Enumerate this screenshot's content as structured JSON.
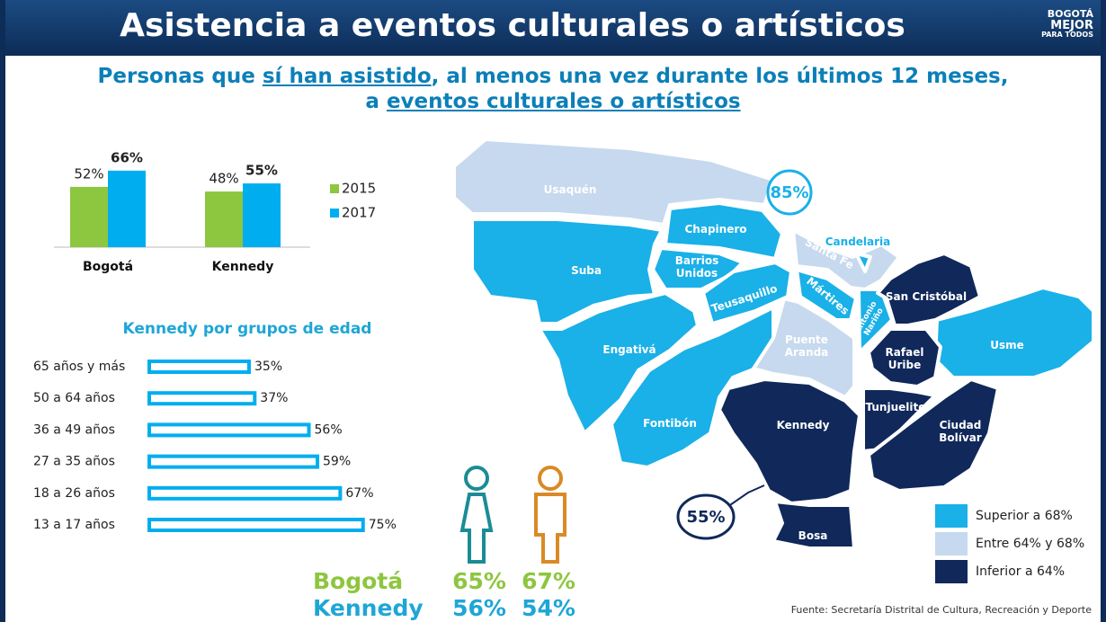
{
  "header": {
    "title": "Asistencia a eventos culturales o artísticos",
    "logo": [
      "BOGOTÁ",
      "MEJOR",
      "PARA TODOS"
    ]
  },
  "subtitle": {
    "line1": [
      {
        "text": "Personas que "
      },
      {
        "text": "sí han asistido",
        "underline": true
      },
      {
        "text": ", al menos una vez durante los últimos 12 meses,"
      }
    ],
    "line2": [
      {
        "text": "a "
      },
      {
        "text": "eventos culturales o artísticos",
        "underline": true
      }
    ]
  },
  "chart_data": [
    {
      "type": "bar",
      "categories": [
        "Bogotá",
        "Kennedy"
      ],
      "series": [
        {
          "name": "2015",
          "color": "#8dc63f",
          "values": [
            52,
            48
          ],
          "value_labels": [
            "52%",
            "48%"
          ]
        },
        {
          "name": "2017",
          "color": "#00aeef",
          "values": [
            66,
            55
          ],
          "value_labels": [
            "66%",
            "55%"
          ]
        }
      ]
    },
    {
      "type": "hbar",
      "title": "Kennedy por grupos de edad",
      "color": "#00aeef",
      "categories": [
        "65 años y más",
        "50 a 64 años",
        "36 a 49 años",
        "27 a 35 años",
        "18 a 26 años",
        "13 a 17 años"
      ],
      "values": [
        35,
        37,
        56,
        59,
        67,
        75
      ],
      "value_labels": [
        "35%",
        "37%",
        "56%",
        "59%",
        "67%",
        "75%"
      ]
    }
  ],
  "gender": {
    "rows": [
      {
        "name": "Bogotá",
        "color": "#8dc63f",
        "female": "65%",
        "male": "67%"
      },
      {
        "name": "Kennedy",
        "color": "#1ea6d6",
        "female": "56%",
        "male": "54%"
      }
    ]
  },
  "map": {
    "localities": [
      {
        "name": "Usaquén",
        "color": "#c6d9ee"
      },
      {
        "name": "Chapinero",
        "color": "#1ab0e8"
      },
      {
        "name": "Suba",
        "color": "#1ab0e8"
      },
      {
        "name": "Barrios\nUnidos",
        "color": "#1ab0e8"
      },
      {
        "name": "Teusaquillo",
        "color": "#1ab0e8"
      },
      {
        "name": "Engativá",
        "color": "#1ab0e8"
      },
      {
        "name": "Fontibón",
        "color": "#1ab0e8"
      },
      {
        "name": "Puente\nAranda",
        "color": "#c6d9ee"
      },
      {
        "name": "Mártires",
        "color": "#1ab0e8"
      },
      {
        "name": "Santa Fe",
        "color": "#c6d9ee"
      },
      {
        "name": "Candelaria",
        "color": "#1ab0e8"
      },
      {
        "name": "Antonio\nNariño",
        "color": "#1ab0e8"
      },
      {
        "name": "San Cristóbal",
        "color": "#10285a"
      },
      {
        "name": "Usme",
        "color": "#1ab0e8"
      },
      {
        "name": "Rafael\nUribe",
        "color": "#10285a"
      },
      {
        "name": "Tunjuelito",
        "color": "#10285a"
      },
      {
        "name": "Ciudad\nBolívar",
        "color": "#10285a"
      },
      {
        "name": "Kennedy",
        "color": "#10285a"
      },
      {
        "name": "Bosa",
        "color": "#10285a"
      }
    ],
    "callouts": [
      "85%",
      "55%"
    ],
    "legend": [
      {
        "label": "Superior a 68%",
        "color": "#1ab0e8"
      },
      {
        "label": "Entre 64% y 68%",
        "color": "#c6d9ee"
      },
      {
        "label": "Inferior a 64%",
        "color": "#10285a"
      }
    ]
  },
  "source": "Fuente: Secretaría Distrital de Cultura, Recreación y Deporte"
}
